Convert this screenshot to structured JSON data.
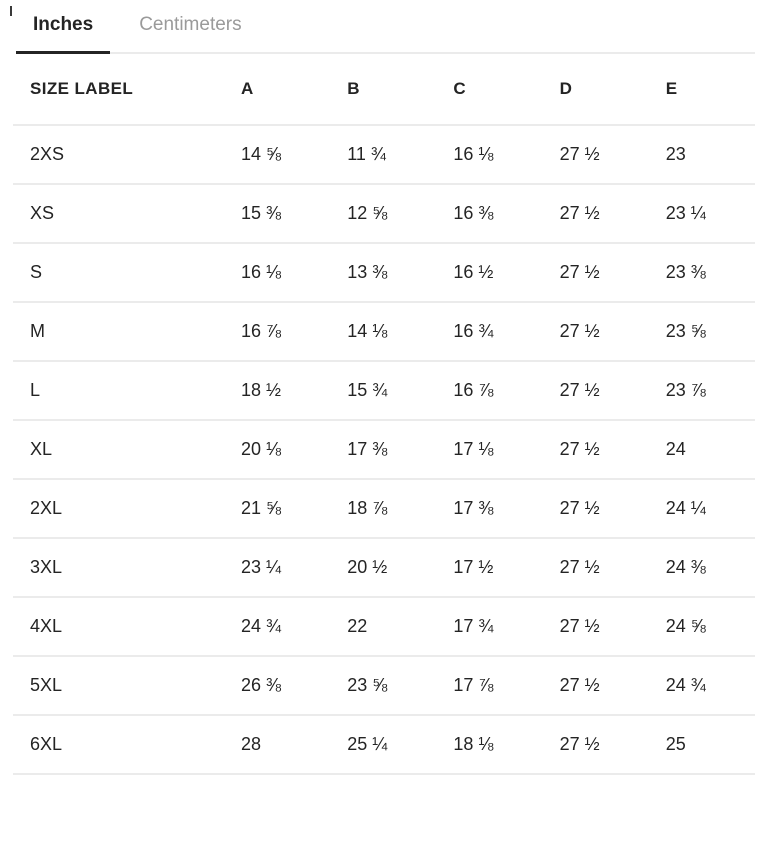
{
  "tabs": {
    "items": [
      {
        "label": "Inches",
        "active": true
      },
      {
        "label": "Centimeters",
        "active": false
      }
    ]
  },
  "size_chart": {
    "unit": "Inches",
    "columns": [
      "SIZE LABEL",
      "A",
      "B",
      "C",
      "D",
      "E"
    ],
    "rows": [
      {
        "label": "2XS",
        "values": [
          "14 ⅝",
          "11 ¾",
          "16 ⅛",
          "27 ½",
          "23"
        ]
      },
      {
        "label": "XS",
        "values": [
          "15 ⅜",
          "12 ⅝",
          "16 ⅜",
          "27 ½",
          "23 ¼"
        ]
      },
      {
        "label": "S",
        "values": [
          "16 ⅛",
          "13 ⅜",
          "16 ½",
          "27 ½",
          "23 ⅜"
        ]
      },
      {
        "label": "M",
        "values": [
          "16 ⅞",
          "14 ⅛",
          "16 ¾",
          "27 ½",
          "23 ⅝"
        ]
      },
      {
        "label": "L",
        "values": [
          "18 ½",
          "15 ¾",
          "16 ⅞",
          "27 ½",
          "23 ⅞"
        ]
      },
      {
        "label": "XL",
        "values": [
          "20 ⅛",
          "17 ⅜",
          "17 ⅛",
          "27 ½",
          "24"
        ]
      },
      {
        "label": "2XL",
        "values": [
          "21 ⅝",
          "18 ⅞",
          "17 ⅜",
          "27 ½",
          "24 ¼"
        ]
      },
      {
        "label": "3XL",
        "values": [
          "23 ¼",
          "20 ½",
          "17 ½",
          "27 ½",
          "24 ⅜"
        ]
      },
      {
        "label": "4XL",
        "values": [
          "24 ¾",
          "22",
          "17 ¾",
          "27 ½",
          "24 ⅝"
        ]
      },
      {
        "label": "5XL",
        "values": [
          "26 ⅜",
          "23 ⅝",
          "17 ⅞",
          "27 ½",
          "24 ¾"
        ]
      },
      {
        "label": "6XL",
        "values": [
          "28",
          "25 ¼",
          "18 ⅛",
          "27 ½",
          "25"
        ]
      }
    ]
  },
  "colors": {
    "text": "#242424",
    "inactive_tab": "#9a9a9a",
    "divider": "#ebebeb",
    "tab_indicator": "#242424",
    "background": "#ffffff"
  }
}
